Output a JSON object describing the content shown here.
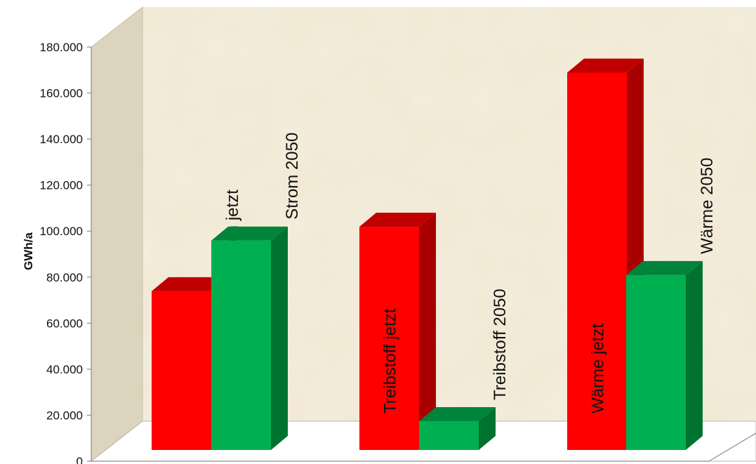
{
  "chart_data": {
    "type": "bar",
    "style": "3d-column",
    "ylabel": "GWh/a",
    "xlabel": "",
    "title": "",
    "ylim": [
      0,
      180000
    ],
    "ytick_values": [
      0,
      20000,
      40000,
      60000,
      80000,
      100000,
      120000,
      140000,
      160000,
      180000
    ],
    "ytick_labels": [
      "0",
      "20.000",
      "40.000",
      "60.000",
      "80.000",
      "100.000",
      "120.000",
      "140.000",
      "160.000",
      "180.000"
    ],
    "grid": false,
    "legend": "none",
    "bars": [
      {
        "label": "Strom jetzt",
        "value": 69000,
        "color": "#ff0000"
      },
      {
        "label": "Strom 2050",
        "value": 91000,
        "color": "#00b050"
      },
      {
        "label": "Treibstoff jetzt",
        "value": 97000,
        "color": "#ff0000"
      },
      {
        "label": "Treibstoff 2050",
        "value": 12500,
        "color": "#00b050"
      },
      {
        "label": "Wärme jetzt",
        "value": 164000,
        "color": "#ff0000"
      },
      {
        "label": "Wärme 2050",
        "value": 76000,
        "color": "#00b050"
      }
    ],
    "colors": {
      "red_front": "#ff0000",
      "red_top": "#c00000",
      "red_side": "#a80000",
      "green_front": "#00b050",
      "green_top": "#00843c",
      "green_side": "#00722f",
      "wall_back": "#f1e8d2",
      "wall_side": "#ddd4bd",
      "floor": "#ffffff"
    }
  }
}
